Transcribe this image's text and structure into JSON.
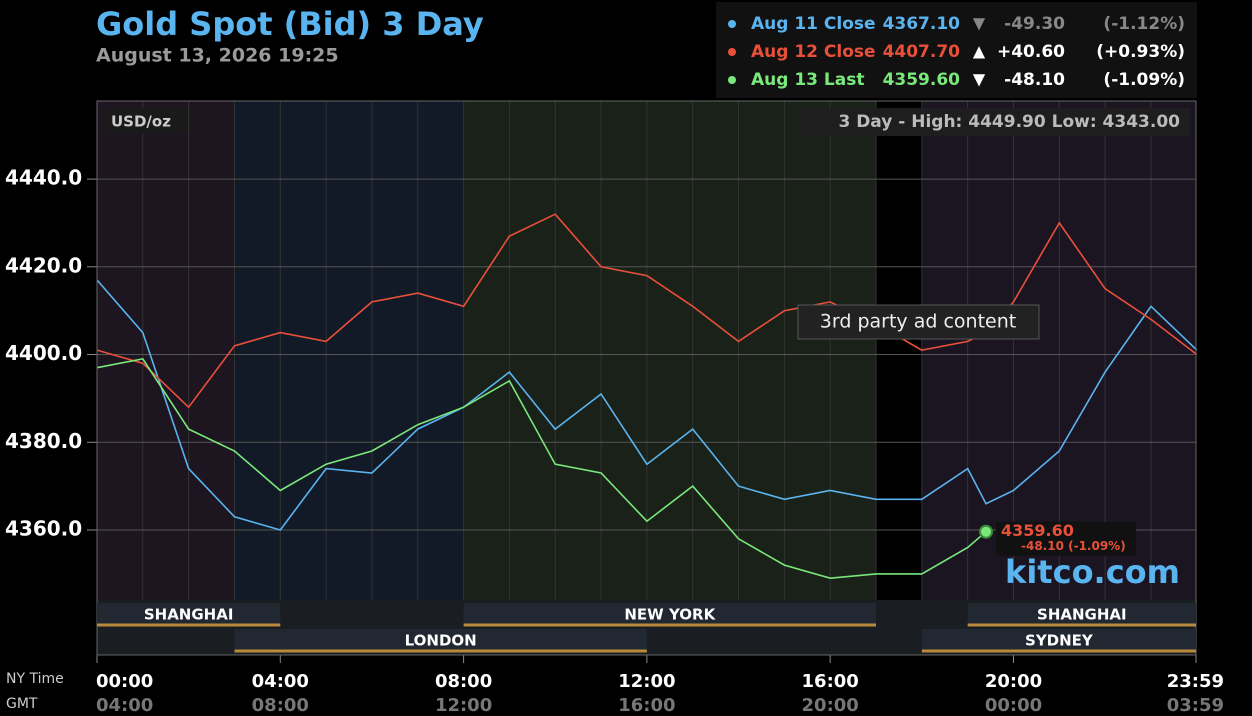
{
  "chart_data": {
    "type": "line",
    "title": "Gold Spot (Bid) 3 Day",
    "subtitle": "August 13, 2026 19:25",
    "unit_label": "USD/oz",
    "range_label": "3 Day - High: 4449.90  Low: 4343.00",
    "ad_label": "3rd party ad content",
    "brand": "kitco.com",
    "x_axis_label": "NY Time",
    "x2_axis_label": "GMT",
    "legend": [
      {
        "name": "Aug 11 Close",
        "price": "4367.10",
        "arrow": "▼",
        "change": "-49.30",
        "pct": "(-1.12%)"
      },
      {
        "name": "Aug 12 Close",
        "price": "4407.70",
        "arrow": "▲",
        "change": "+40.60",
        "pct": "(+0.93%)"
      },
      {
        "name": "Aug 13 Last",
        "price": "4359.60",
        "arrow": "▼",
        "change": "-48.10",
        "pct": "(-1.09%)"
      }
    ],
    "x": [
      0,
      1,
      2,
      3,
      4,
      5,
      6,
      7,
      8,
      9,
      10,
      11,
      12,
      13,
      14,
      15,
      16,
      17,
      18,
      19,
      19.4,
      20,
      21,
      22,
      23,
      24
    ],
    "series": [
      {
        "name": "Aug 11 Close",
        "color": "#5ab4f0",
        "values": [
          4417,
          4405,
          4374,
          4363,
          4360,
          4374,
          4373,
          4383,
          4388,
          4396,
          4383,
          4391,
          4375,
          4383,
          4370,
          4367,
          4369,
          4367,
          4367,
          4374,
          4366,
          4369,
          4378,
          4396,
          4411,
          4401
        ]
      },
      {
        "name": "Aug 12 Close",
        "color": "#e8503a",
        "values": [
          4401,
          4398,
          4388,
          4402,
          4405,
          4403,
          4412,
          4414,
          4411,
          4427,
          4432,
          4420,
          4418,
          4411,
          4403,
          4410,
          4412,
          4407,
          4401,
          4403,
          4405,
          4412,
          4430,
          4415,
          4408,
          4400
        ]
      },
      {
        "name": "Aug 13 Last",
        "color": "#7ae87a",
        "values": [
          4397,
          4399,
          4383,
          4378,
          4369,
          4375,
          4378,
          4384,
          4388,
          4394,
          4375,
          4373,
          4362,
          4370,
          4358,
          4352,
          4349,
          4350,
          4350,
          4356,
          4359.6,
          null,
          null,
          null,
          null,
          null
        ]
      }
    ],
    "last_label": {
      "price": "4359.60",
      "change": "-48.10 (-1.09%)"
    },
    "xlim": [
      0,
      23.983
    ],
    "xticks": [
      {
        "value": 0,
        "label": "00:00"
      },
      {
        "value": 4,
        "label": "04:00"
      },
      {
        "value": 8,
        "label": "08:00"
      },
      {
        "value": 12,
        "label": "12:00"
      },
      {
        "value": 16,
        "label": "16:00"
      },
      {
        "value": 20,
        "label": "20:00"
      },
      {
        "value": 23.983,
        "label": "23:59"
      }
    ],
    "x2ticklabels": [
      "04:00",
      "08:00",
      "12:00",
      "16:00",
      "20:00",
      "00:00",
      "03:59"
    ],
    "ylim": [
      4331.5,
      4457.8
    ],
    "yticks": [
      {
        "value": 4360,
        "label": "4360.0"
      },
      {
        "value": 4380,
        "label": "4380.0"
      },
      {
        "value": 4400,
        "label": "4400.0"
      },
      {
        "value": 4420,
        "label": "4420.0"
      },
      {
        "value": 4440,
        "label": "4440.0"
      }
    ],
    "grid": true,
    "sessions": [
      {
        "name": "SHANGHAI",
        "start": 0,
        "end": 4,
        "row": 0,
        "color": "#1d1520"
      },
      {
        "name": "LONDON",
        "start": 3,
        "end": 12,
        "row": 1,
        "color": "#131a27"
      },
      {
        "name": "NEW YORK",
        "start": 8,
        "end": 17,
        "row": 0,
        "color": "#1a2119"
      },
      {
        "name": "SYDNEY",
        "start": 18,
        "end": 23.983,
        "row": 1,
        "color": "#1b1522"
      },
      {
        "name": "SHANGHAI",
        "start": 19,
        "end": 23.983,
        "row": 0,
        "color": "#1b1522"
      }
    ]
  }
}
